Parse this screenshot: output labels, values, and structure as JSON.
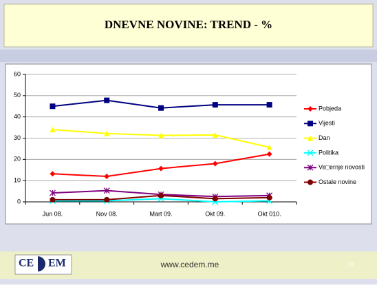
{
  "chart_data": {
    "type": "line",
    "title": "DNEVNE NOVINE: TREND - %",
    "categories": [
      "Jun 08.",
      "Nov 08.",
      "Mart 09.",
      "Okt 09.",
      "Okt 010."
    ],
    "ylim": [
      0,
      60
    ],
    "yticks": [
      0,
      10,
      20,
      30,
      40,
      50,
      60
    ],
    "grid": true,
    "legend": "right",
    "series": [
      {
        "name": "Pobjeda",
        "color": "#ff0000",
        "marker": "diamond",
        "values": [
          13.2,
          12,
          15.7,
          18,
          22.5
        ]
      },
      {
        "name": "Vijesti",
        "color": "#000080",
        "marker": "square",
        "values": [
          45,
          47.8,
          44.2,
          45.7,
          45.7
        ]
      },
      {
        "name": "Dan",
        "color": "#ffff00",
        "marker": "triangle",
        "values": [
          34,
          32.2,
          31.3,
          31.5,
          25.7
        ]
      },
      {
        "name": "Politika",
        "color": "#00ffff",
        "marker": "x",
        "values": [
          0.5,
          0.5,
          1.5,
          0,
          0.5
        ]
      },
      {
        "name": "Ve□ernje novosti",
        "color": "#800080",
        "marker": "star",
        "values": [
          4.2,
          5.3,
          3.5,
          2.5,
          3
        ]
      },
      {
        "name": "Ostale novine",
        "color": "#800000",
        "marker": "circle",
        "values": [
          1,
          1,
          3,
          1.5,
          2
        ]
      }
    ]
  },
  "footer": {
    "logo_left": "CE",
    "logo_right": "EM",
    "url": "www.cedem.me",
    "page": "24"
  }
}
